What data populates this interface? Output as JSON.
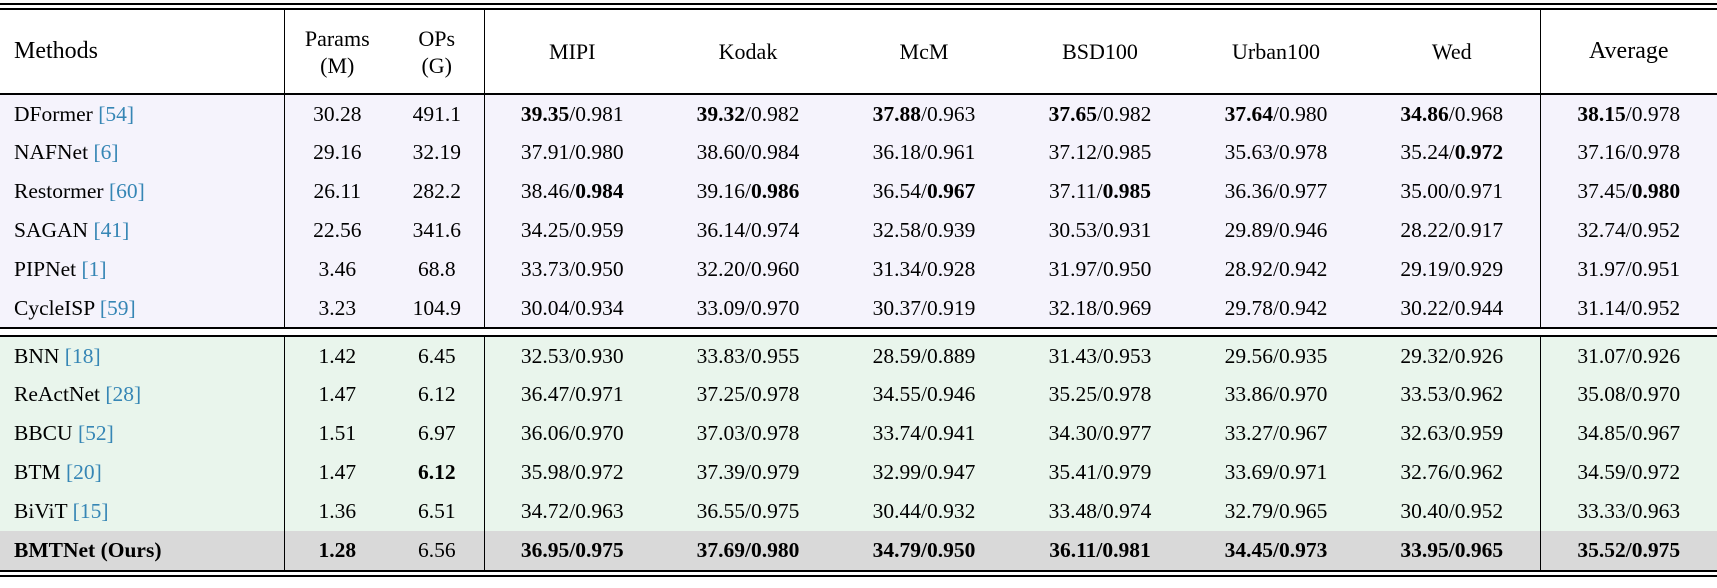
{
  "colors": {
    "citation": "#3686b5",
    "group1_bg": "#f5f3fc",
    "group2_bg": "#e9f5ec",
    "highlight_bg": "#d9d9d9",
    "rule": "#000000"
  },
  "table": {
    "header": {
      "methods": "Methods",
      "params": [
        "Params",
        "(M)"
      ],
      "ops": [
        "OPs",
        "(G)"
      ],
      "datasets": [
        "MIPI",
        "Kodak",
        "McM",
        "BSD100",
        "Urban100",
        "Wed"
      ],
      "average": "Average"
    },
    "groups": [
      {
        "bg": "#f5f3fc",
        "rows": [
          {
            "method": "DFormer",
            "cite": "[54]",
            "params": "30.28",
            "ops": "491.1",
            "metrics": [
              {
                "p": "39.35",
                "s": "0.981",
                "bp": true
              },
              {
                "p": "39.32",
                "s": "0.982",
                "bp": true
              },
              {
                "p": "37.88",
                "s": "0.963",
                "bp": true
              },
              {
                "p": "37.65",
                "s": "0.982",
                "bp": true
              },
              {
                "p": "37.64",
                "s": "0.980",
                "bp": true
              },
              {
                "p": "34.86",
                "s": "0.968",
                "bp": true
              },
              {
                "p": "38.15",
                "s": "0.978",
                "bp": true
              }
            ]
          },
          {
            "method": "NAFNet",
            "cite": "[6]",
            "params": "29.16",
            "ops": "32.19",
            "metrics": [
              {
                "p": "37.91",
                "s": "0.980"
              },
              {
                "p": "38.60",
                "s": "0.984"
              },
              {
                "p": "36.18",
                "s": "0.961"
              },
              {
                "p": "37.12",
                "s": "0.985"
              },
              {
                "p": "35.63",
                "s": "0.978"
              },
              {
                "p": "35.24",
                "s": "0.972",
                "bs": true
              },
              {
                "p": "37.16",
                "s": "0.978"
              }
            ]
          },
          {
            "method": "Restormer",
            "cite": "[60]",
            "params": "26.11",
            "ops": "282.2",
            "metrics": [
              {
                "p": "38.46",
                "s": "0.984",
                "bs": true
              },
              {
                "p": "39.16",
                "s": "0.986",
                "bs": true
              },
              {
                "p": "36.54",
                "s": "0.967",
                "bs": true
              },
              {
                "p": "37.11",
                "s": "0.985",
                "bs": true
              },
              {
                "p": "36.36",
                "s": "0.977"
              },
              {
                "p": "35.00",
                "s": "0.971"
              },
              {
                "p": "37.45",
                "s": "0.980",
                "bs": true
              }
            ]
          },
          {
            "method": "SAGAN",
            "cite": "[41]",
            "params": "22.56",
            "ops": "341.6",
            "metrics": [
              {
                "p": "34.25",
                "s": "0.959"
              },
              {
                "p": "36.14",
                "s": "0.974"
              },
              {
                "p": "32.58",
                "s": "0.939"
              },
              {
                "p": "30.53",
                "s": "0.931"
              },
              {
                "p": "29.89",
                "s": "0.946"
              },
              {
                "p": "28.22",
                "s": "0.917"
              },
              {
                "p": "32.74",
                "s": "0.952"
              }
            ]
          },
          {
            "method": "PIPNet",
            "cite": "[1]",
            "params": "3.46",
            "ops": "68.8",
            "metrics": [
              {
                "p": "33.73",
                "s": "0.950"
              },
              {
                "p": "32.20",
                "s": "0.960"
              },
              {
                "p": "31.34",
                "s": "0.928"
              },
              {
                "p": "31.97",
                "s": "0.950"
              },
              {
                "p": "28.92",
                "s": "0.942"
              },
              {
                "p": "29.19",
                "s": "0.929"
              },
              {
                "p": "31.97",
                "s": "0.951"
              }
            ]
          },
          {
            "method": "CycleISP",
            "cite": "[59]",
            "params": "3.23",
            "ops": "104.9",
            "metrics": [
              {
                "p": "30.04",
                "s": "0.934"
              },
              {
                "p": "33.09",
                "s": "0.970"
              },
              {
                "p": "30.37",
                "s": "0.919"
              },
              {
                "p": "32.18",
                "s": "0.969"
              },
              {
                "p": "29.78",
                "s": "0.942"
              },
              {
                "p": "30.22",
                "s": "0.944"
              },
              {
                "p": "31.14",
                "s": "0.952"
              }
            ]
          }
        ]
      },
      {
        "bg": "#e9f5ec",
        "rows": [
          {
            "method": "BNN",
            "cite": "[18]",
            "params": "1.42",
            "ops": "6.45",
            "metrics": [
              {
                "p": "32.53",
                "s": "0.930"
              },
              {
                "p": "33.83",
                "s": "0.955"
              },
              {
                "p": "28.59",
                "s": "0.889"
              },
              {
                "p": "31.43",
                "s": "0.953"
              },
              {
                "p": "29.56",
                "s": "0.935"
              },
              {
                "p": "29.32",
                "s": "0.926"
              },
              {
                "p": "31.07",
                "s": "0.926"
              }
            ]
          },
          {
            "method": "ReActNet",
            "cite": "[28]",
            "params": "1.47",
            "ops": "6.12",
            "metrics": [
              {
                "p": "36.47",
                "s": "0.971"
              },
              {
                "p": "37.25",
                "s": "0.978"
              },
              {
                "p": "34.55",
                "s": "0.946"
              },
              {
                "p": "35.25",
                "s": "0.978"
              },
              {
                "p": "33.86",
                "s": "0.970"
              },
              {
                "p": "33.53",
                "s": "0.962"
              },
              {
                "p": "35.08",
                "s": "0.970"
              }
            ]
          },
          {
            "method": "BBCU",
            "cite": "[52]",
            "params": "1.51",
            "ops": "6.97",
            "metrics": [
              {
                "p": "36.06",
                "s": "0.970"
              },
              {
                "p": "37.03",
                "s": "0.978"
              },
              {
                "p": "33.74",
                "s": "0.941"
              },
              {
                "p": "34.30",
                "s": "0.977"
              },
              {
                "p": "33.27",
                "s": "0.967"
              },
              {
                "p": "32.63",
                "s": "0.959"
              },
              {
                "p": "34.85",
                "s": "0.967"
              }
            ]
          },
          {
            "method": "BTM",
            "cite": "[20]",
            "params": "1.47",
            "ops": "6.12",
            "ops_bold": true,
            "metrics": [
              {
                "p": "35.98",
                "s": "0.972"
              },
              {
                "p": "37.39",
                "s": "0.979"
              },
              {
                "p": "32.99",
                "s": "0.947"
              },
              {
                "p": "35.41",
                "s": "0.979"
              },
              {
                "p": "33.69",
                "s": "0.971"
              },
              {
                "p": "32.76",
                "s": "0.962"
              },
              {
                "p": "34.59",
                "s": "0.972"
              }
            ]
          },
          {
            "method": "BiViT",
            "cite": "[15]",
            "params": "1.36",
            "ops": "6.51",
            "metrics": [
              {
                "p": "34.72",
                "s": "0.963"
              },
              {
                "p": "36.55",
                "s": "0.975"
              },
              {
                "p": "30.44",
                "s": "0.932"
              },
              {
                "p": "33.48",
                "s": "0.974"
              },
              {
                "p": "32.79",
                "s": "0.965"
              },
              {
                "p": "30.40",
                "s": "0.952"
              },
              {
                "p": "33.33",
                "s": "0.963"
              }
            ]
          },
          {
            "method": "BMTNet (Ours)",
            "cite": "",
            "bold": true,
            "bg": "#d9d9d9",
            "params": "1.28",
            "params_bold": true,
            "ops": "6.56",
            "metrics": [
              {
                "p": "36.95",
                "s": "0.975",
                "bp": true,
                "bs": true
              },
              {
                "p": "37.69",
                "s": "0.980",
                "bp": true,
                "bs": true
              },
              {
                "p": "34.79",
                "s": "0.950",
                "bp": true,
                "bs": true
              },
              {
                "p": "36.11",
                "s": "0.981",
                "bp": true,
                "bs": true
              },
              {
                "p": "34.45",
                "s": "0.973",
                "bp": true,
                "bs": true
              },
              {
                "p": "33.95",
                "s": "0.965",
                "bp": true,
                "bs": true
              },
              {
                "p": "35.52",
                "s": "0.975",
                "bp": true,
                "bs": true
              }
            ]
          }
        ]
      }
    ]
  }
}
